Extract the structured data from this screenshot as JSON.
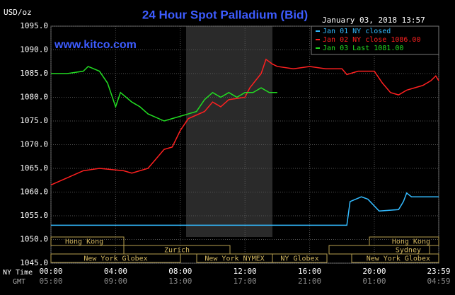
{
  "chart_data": {
    "type": "line",
    "title": "24 Hour Spot Palladium (Bid)",
    "subtitle": "January 03, 2018 13:57",
    "ylabel": "USD/oz",
    "watermark": "www.kitco.com",
    "xlabel": "NY Time",
    "x2label": "GMT",
    "xlim": [
      0,
      23.983
    ],
    "xticks": [
      {
        "value": 0,
        "label": "00:00"
      },
      {
        "value": 4,
        "label": "04:00"
      },
      {
        "value": 8,
        "label": "08:00"
      },
      {
        "value": 12,
        "label": "12:00"
      },
      {
        "value": 16,
        "label": "16:00"
      },
      {
        "value": 20,
        "label": "20:00"
      },
      {
        "value": 23.983,
        "label": "23:59"
      }
    ],
    "x2ticks": [
      "05:00",
      "09:00",
      "13:00",
      "17:00",
      "21:00",
      "01:00",
      "04:59"
    ],
    "ylim": [
      1045,
      1095
    ],
    "yticks": [
      {
        "value": 1045,
        "label": "1045.0"
      },
      {
        "value": 1050,
        "label": "1050.0"
      },
      {
        "value": 1055,
        "label": "1055.0"
      },
      {
        "value": 1060,
        "label": "1060.0"
      },
      {
        "value": 1065,
        "label": "1065.0"
      },
      {
        "value": 1070,
        "label": "1070.0"
      },
      {
        "value": 1075,
        "label": "1075.0"
      },
      {
        "value": 1080,
        "label": "1080.0"
      },
      {
        "value": 1085,
        "label": "1085.0"
      },
      {
        "value": 1090,
        "label": "1090.0"
      },
      {
        "value": 1095,
        "label": "1095.0"
      }
    ],
    "grid": true,
    "legend": "upper right",
    "sessions": [
      "Hong Kong",
      "Zurich",
      "New York Globex",
      "New York NYMEX",
      "NY Globex",
      "Hong Kong",
      "Sydney",
      "New York Globex"
    ],
    "series": [
      {
        "name": "Jan 01 NY closed",
        "color": "#33bbff",
        "x": [
          0,
          18.3,
          18.5,
          19.2,
          19.6,
          20.3,
          21.5,
          21.8,
          22,
          22.3,
          23.983
        ],
        "values": [
          1053,
          1053,
          1058,
          1059,
          1058.5,
          1056,
          1056.3,
          1058,
          1059.8,
          1059,
          1059
        ]
      },
      {
        "name": "Jan 02 NY close 1086.00",
        "color": "#ff2020",
        "x": [
          0,
          1,
          2,
          3,
          4.5,
          5,
          6,
          6.5,
          7,
          7.5,
          8,
          8.5,
          9.5,
          10,
          10.5,
          11,
          12,
          12.3,
          13,
          13.3,
          13.7,
          14,
          15,
          16,
          17,
          18,
          18.3,
          19,
          20,
          20.5,
          21,
          21.5,
          22,
          23,
          23.5,
          23.8,
          23.983
        ],
        "values": [
          1061.5,
          1063,
          1064.5,
          1065,
          1064.5,
          1064,
          1065,
          1067,
          1069,
          1069.5,
          1073,
          1075.5,
          1077,
          1079,
          1078,
          1079.5,
          1080,
          1082,
          1085,
          1088,
          1087,
          1086.5,
          1086,
          1086.5,
          1086,
          1086,
          1084.8,
          1085.5,
          1085.5,
          1083,
          1081,
          1080.5,
          1081.5,
          1082.5,
          1083.5,
          1084.5,
          1083.5
        ]
      },
      {
        "name": "Jan 03 Last 1081.00",
        "color": "#22dd22",
        "x": [
          0,
          1,
          2,
          2.3,
          3,
          3.5,
          3.8,
          4,
          4.3,
          5,
          5.5,
          6,
          7,
          7.5,
          8,
          9,
          9.5,
          10,
          10.5,
          11,
          11.5,
          12,
          12.5,
          13,
          13.5,
          14
        ],
        "values": [
          1085,
          1085,
          1085.5,
          1086.5,
          1085.5,
          1083,
          1080,
          1078,
          1081,
          1079,
          1078,
          1076.5,
          1075,
          1075.5,
          1076,
          1077,
          1079.5,
          1081,
          1080,
          1081,
          1080,
          1081,
          1081,
          1082,
          1081,
          1081
        ]
      }
    ]
  }
}
